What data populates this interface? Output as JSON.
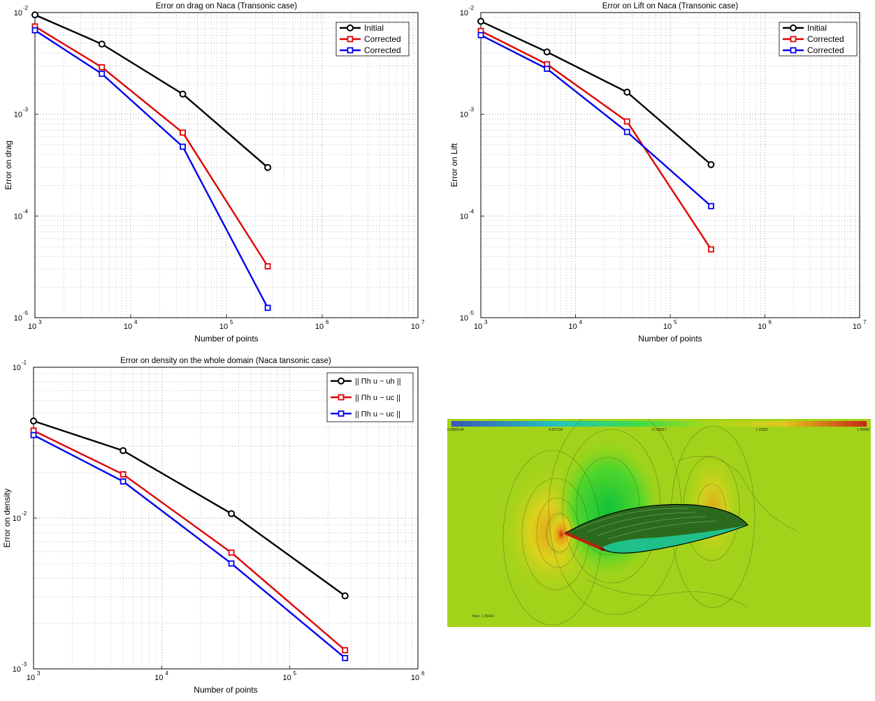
{
  "chart_data": [
    {
      "type": "line",
      "title": "Error on drag on Naca (Transonic case)",
      "xlabel": "Number of points",
      "ylabel": "Error on drag",
      "xscale": "log",
      "yscale": "log",
      "xlim": [
        1000,
        10000000
      ],
      "ylim": [
        1e-05,
        0.01
      ],
      "xticks": [
        {
          "base": "10",
          "exp": "3"
        },
        {
          "base": "10",
          "exp": "4"
        },
        {
          "base": "10",
          "exp": "5"
        },
        {
          "base": "10",
          "exp": "6"
        },
        {
          "base": "10",
          "exp": "7"
        }
      ],
      "yticks": [
        {
          "base": "10",
          "exp": "-5"
        },
        {
          "base": "10",
          "exp": "-4"
        },
        {
          "base": "10",
          "exp": "-3"
        },
        {
          "base": "10",
          "exp": "-2"
        }
      ],
      "grid": true,
      "legend_position": "top-right",
      "x": [
        1000,
        5000,
        35000,
        270000
      ],
      "series": [
        {
          "name": "Initial",
          "color": "#000000",
          "marker": "circle",
          "values": [
            0.0095,
            0.0049,
            0.00158,
            0.0003
          ]
        },
        {
          "name": "Corrected",
          "color": "#dd0000",
          "marker": "square",
          "values": [
            0.0073,
            0.0029,
            0.00066,
            3.2e-05
          ]
        },
        {
          "name": "Corrected",
          "color": "#0000ee",
          "marker": "square",
          "values": [
            0.0067,
            0.0025,
            0.00048,
            1.25e-05
          ]
        }
      ]
    },
    {
      "type": "line",
      "title": "Error on Lift on Naca (Transonic case)",
      "xlabel": "Number of points",
      "ylabel": "Error on Lift",
      "xscale": "log",
      "yscale": "log",
      "xlim": [
        1000,
        10000000
      ],
      "ylim": [
        1e-05,
        0.01
      ],
      "xticks": [
        {
          "base": "10",
          "exp": "3"
        },
        {
          "base": "10",
          "exp": "4"
        },
        {
          "base": "10",
          "exp": "5"
        },
        {
          "base": "10",
          "exp": "6"
        },
        {
          "base": "10",
          "exp": "7"
        }
      ],
      "yticks": [
        {
          "base": "10",
          "exp": "-5"
        },
        {
          "base": "10",
          "exp": "-4"
        },
        {
          "base": "10",
          "exp": "-3"
        },
        {
          "base": "10",
          "exp": "-2"
        }
      ],
      "grid": true,
      "legend_position": "top-right",
      "x": [
        1000,
        5000,
        35000,
        270000
      ],
      "series": [
        {
          "name": "Initial",
          "color": "#000000",
          "marker": "circle",
          "values": [
            0.0082,
            0.0041,
            0.00165,
            0.00032
          ]
        },
        {
          "name": "Corrected",
          "color": "#dd0000",
          "marker": "square",
          "values": [
            0.0066,
            0.0031,
            0.00085,
            4.7e-05
          ]
        },
        {
          "name": "Corrected",
          "color": "#0000ee",
          "marker": "square",
          "values": [
            0.006,
            0.0028,
            0.00067,
            0.000125
          ]
        }
      ]
    },
    {
      "type": "line",
      "title": "Error on density on the whole domain (Naca tansonic case)",
      "xlabel": "Number of points",
      "ylabel": "Error on density",
      "xscale": "log",
      "yscale": "log",
      "xlim": [
        1000,
        1000000
      ],
      "ylim": [
        0.001,
        0.1
      ],
      "xticks": [
        {
          "base": "10",
          "exp": "3"
        },
        {
          "base": "10",
          "exp": "4"
        },
        {
          "base": "10",
          "exp": "5"
        },
        {
          "base": "10",
          "exp": "6"
        }
      ],
      "yticks": [
        {
          "base": "10",
          "exp": "-3"
        },
        {
          "base": "10",
          "exp": "-2"
        },
        {
          "base": "10",
          "exp": "-1"
        }
      ],
      "grid": true,
      "legend_position": "top-right",
      "x": [
        1000,
        5000,
        35000,
        270000
      ],
      "series": [
        {
          "name": "|| Πh u − uh ||",
          "color": "#000000",
          "marker": "circle",
          "values": [
            0.044,
            0.028,
            0.0107,
            0.00305
          ]
        },
        {
          "name": "|| Πh u − uc ||",
          "color": "#dd0000",
          "marker": "square",
          "values": [
            0.038,
            0.0195,
            0.0059,
            0.00133
          ]
        },
        {
          "name": "|| Πh u − uc ||",
          "color": "#0000ee",
          "marker": "square",
          "values": [
            0.0355,
            0.0175,
            0.005,
            0.00118
          ]
        }
      ]
    }
  ],
  "simulation": {
    "colorbar_ticks": [
      "0.0865144",
      "0.427116",
      "0.768217",
      "1.10932",
      "1.45042"
    ],
    "time_label": "Time: 1.15414",
    "colors": {
      "background": "#a2d31a",
      "low": "#3a5fc0",
      "mid": "#22dd55",
      "high": "#cc2200"
    }
  }
}
